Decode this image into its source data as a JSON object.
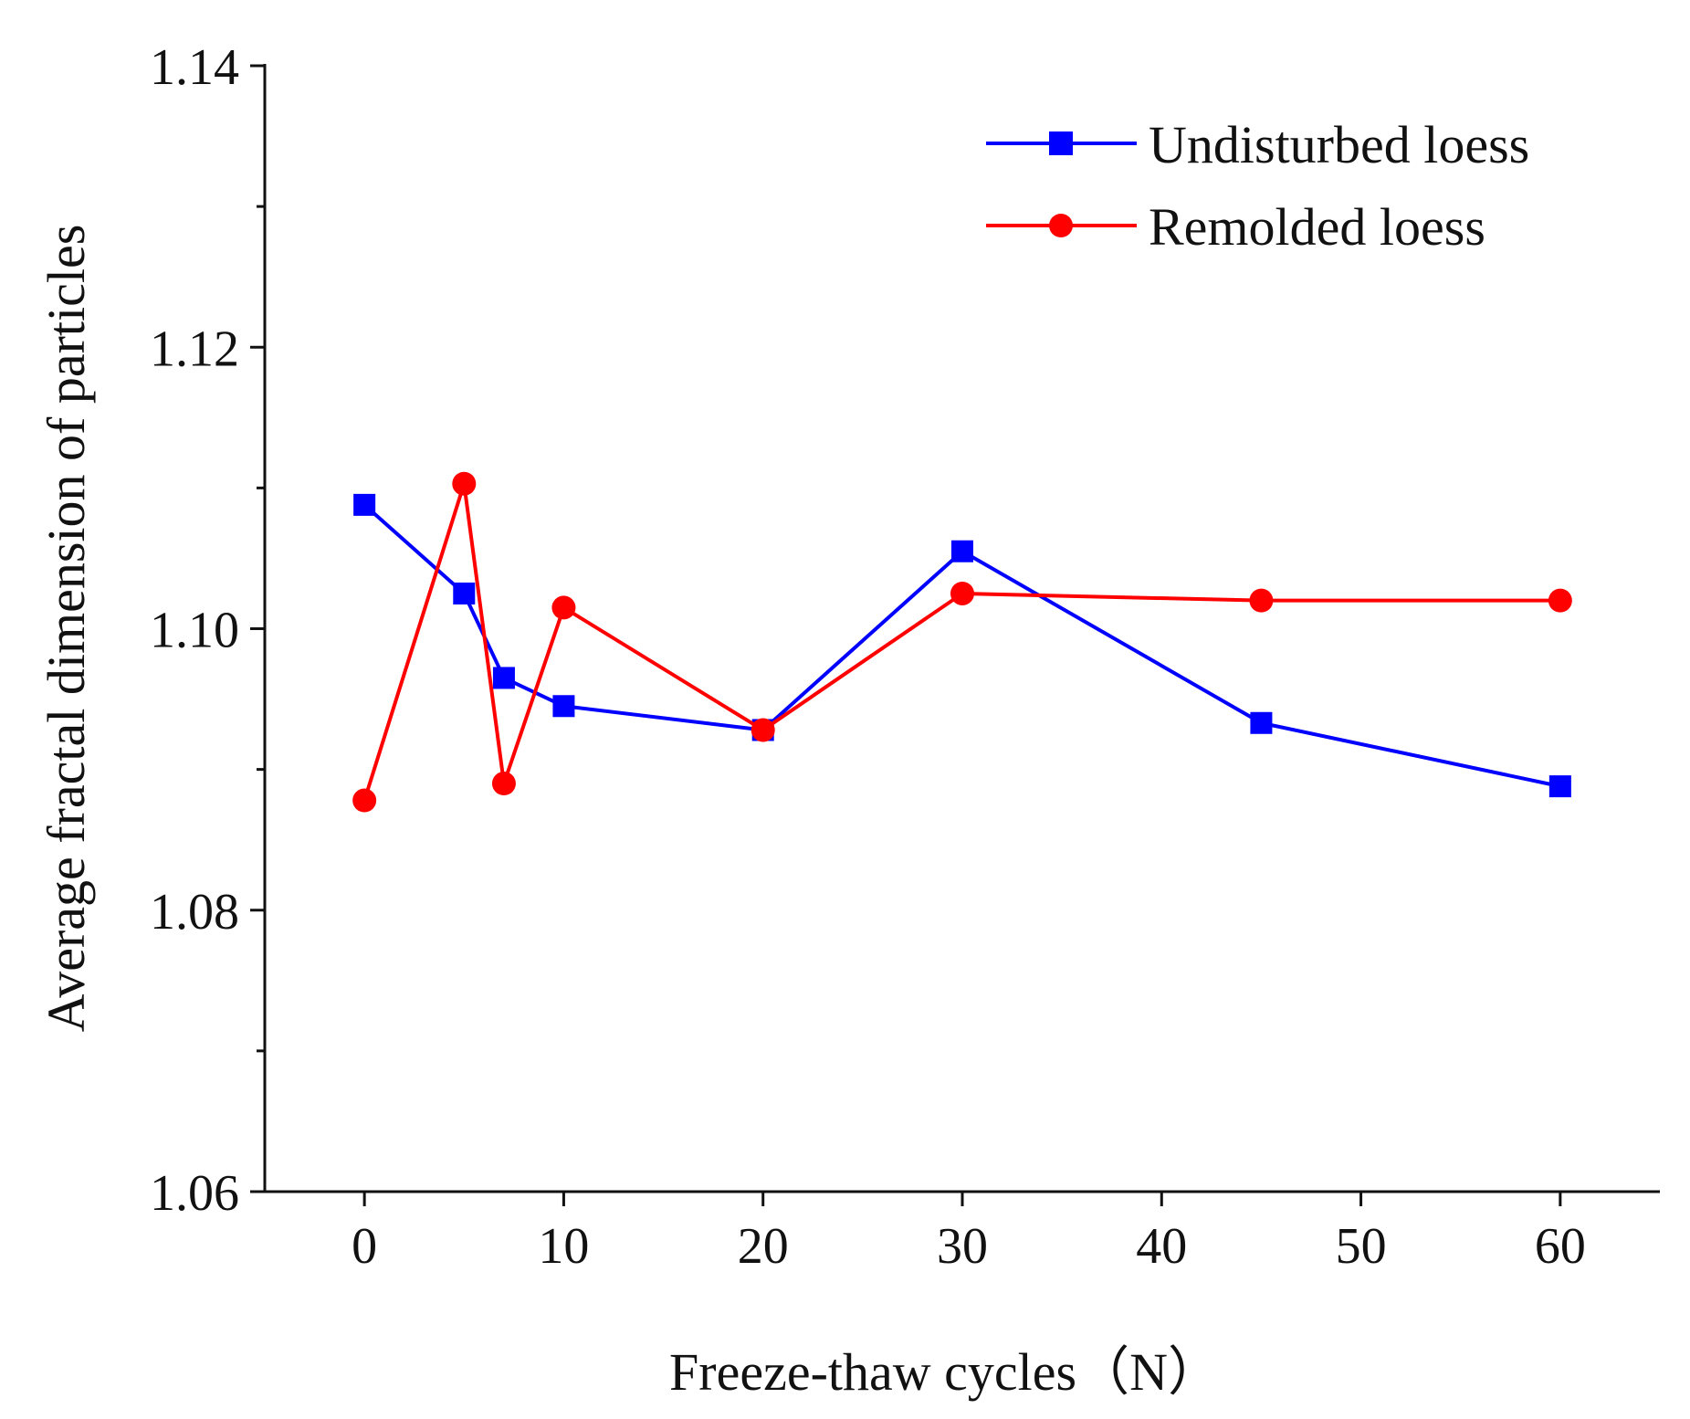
{
  "chart_data": {
    "type": "line",
    "title": "",
    "xlabel": "Freeze-thaw cycles（N）",
    "ylabel": "Average fractal dimension of particles",
    "xlim": [
      -5,
      65
    ],
    "ylim": [
      1.06,
      1.14
    ],
    "xticks": [
      0,
      10,
      20,
      30,
      40,
      50,
      60
    ],
    "yticks": [
      1.06,
      1.08,
      1.1,
      1.12,
      1.14
    ],
    "xtick_labels": [
      "0",
      "10",
      "20",
      "30",
      "40",
      "50",
      "60"
    ],
    "ytick_labels": [
      "1.06",
      "1.08",
      "1.10",
      "1.12",
      "1.14"
    ],
    "grid": false,
    "legend_position": "top-right",
    "series": [
      {
        "name": "Undisturbed loess",
        "color": "#0000ff",
        "marker": "square",
        "x": [
          0,
          5,
          7,
          10,
          20,
          30,
          45,
          60
        ],
        "y": [
          1.1088,
          1.1025,
          1.0965,
          1.0945,
          1.0928,
          1.1055,
          1.0933,
          1.0888
        ]
      },
      {
        "name": "Remolded loess",
        "color": "#ff0000",
        "marker": "circle",
        "x": [
          0,
          5,
          7,
          10,
          20,
          30,
          45,
          60
        ],
        "y": [
          1.0878,
          1.1103,
          1.089,
          1.1015,
          1.0928,
          1.1025,
          1.102,
          1.102
        ]
      }
    ]
  }
}
